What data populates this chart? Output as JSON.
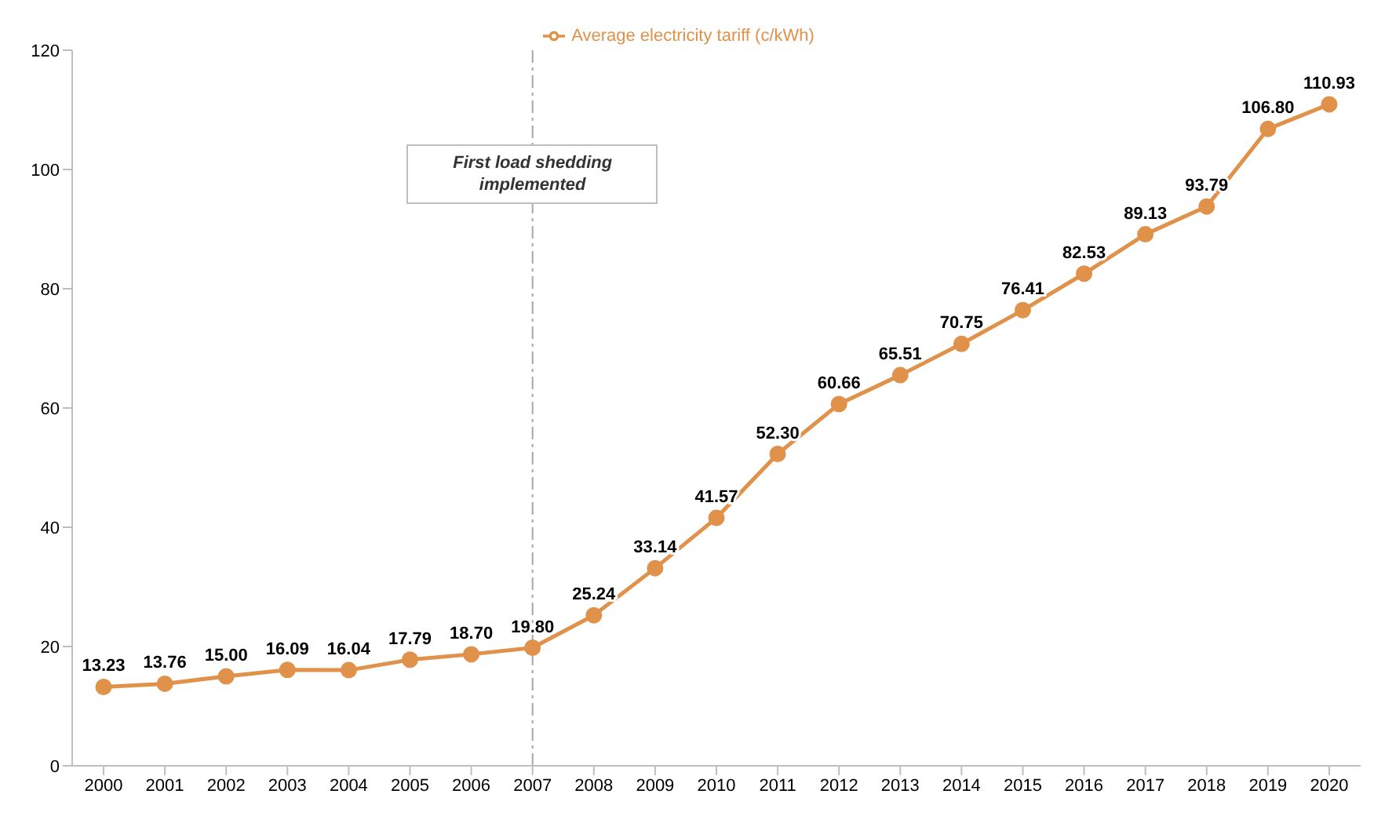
{
  "chart_data": {
    "type": "line",
    "categories": [
      "2000",
      "2001",
      "2002",
      "2003",
      "2004",
      "2005",
      "2006",
      "2007",
      "2008",
      "2009",
      "2010",
      "2011",
      "2012",
      "2013",
      "2014",
      "2015",
      "2016",
      "2017",
      "2018",
      "2019",
      "2020"
    ],
    "series": [
      {
        "name": "Average electricity tariff (c/kWh)",
        "color": "#e0914a",
        "values": [
          13.23,
          13.76,
          15.0,
          16.09,
          16.04,
          17.79,
          18.7,
          19.8,
          25.24,
          33.14,
          41.57,
          52.3,
          60.66,
          65.51,
          70.75,
          76.41,
          82.53,
          89.13,
          93.79,
          106.8,
          110.93
        ],
        "value_labels": [
          "13.23",
          "13.76",
          "15.00",
          "16.09",
          "16.04",
          "17.79",
          "18.70",
          "19.80",
          "25.24",
          "33.14",
          "41.57",
          "52.30",
          "60.66",
          "65.51",
          "70.75",
          "76.41",
          "82.53",
          "89.13",
          "93.79",
          "106.80",
          "110.93"
        ]
      }
    ],
    "ylim": [
      0,
      120
    ],
    "yticks": [
      0,
      20,
      40,
      60,
      80,
      100,
      120
    ],
    "ref_lines": [
      {
        "axis": "x",
        "value": "2007",
        "label": "First load shedding implemented",
        "color": "#a6a6a6",
        "line_style": "dashed"
      }
    ],
    "grid": false,
    "legend": "top",
    "marker": "circle",
    "line_style": "solid"
  }
}
